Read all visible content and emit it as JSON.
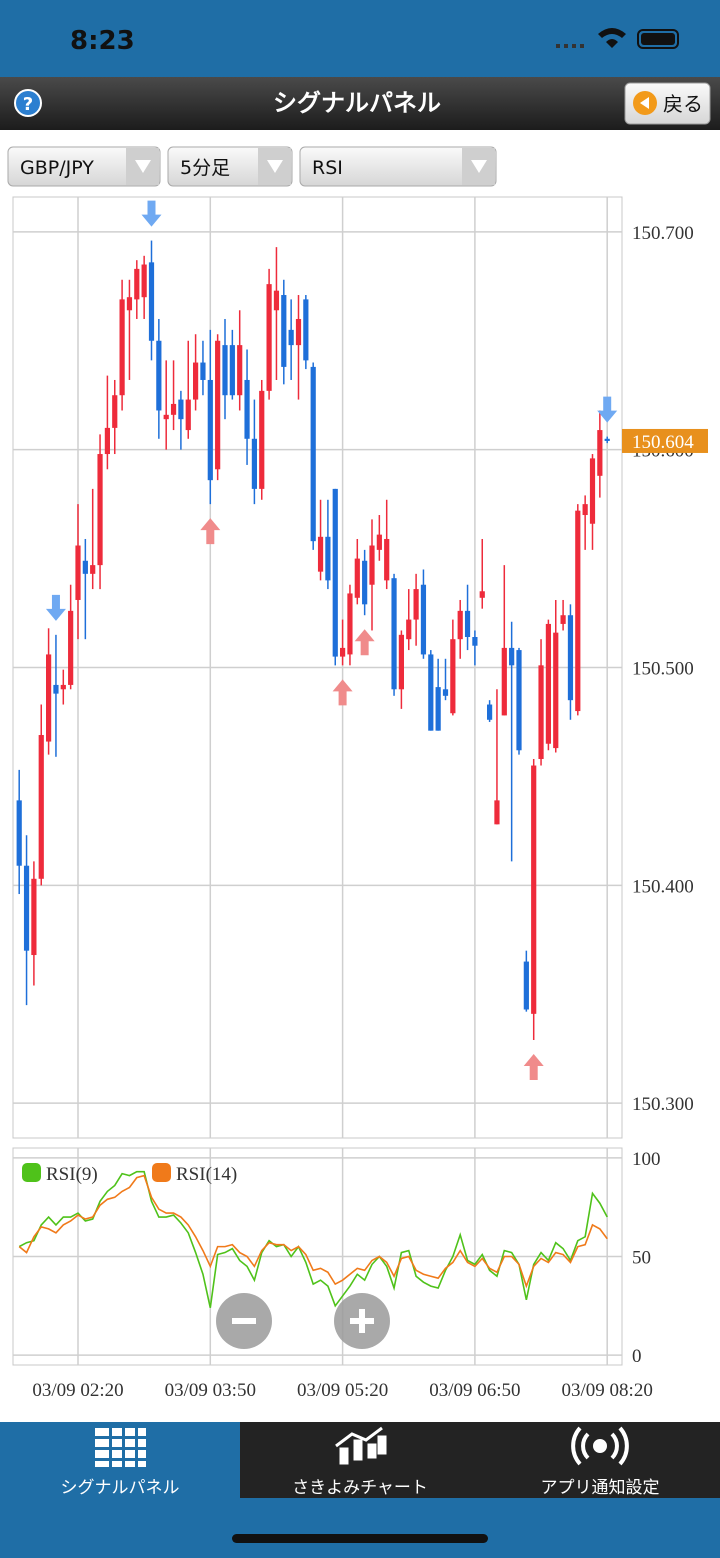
{
  "status_bar": {
    "time": "8:23"
  },
  "header": {
    "title": "シグナルパネル",
    "back_button": "戻る"
  },
  "selectors": [
    "GBP/JPY",
    "5分足",
    "RSI"
  ],
  "chart_data": [
    {
      "type": "candlestick",
      "up_color": "#ee2b3b",
      "down_color": "#1e6fd9",
      "grid": true,
      "ylim": [
        150.284,
        150.716
      ],
      "yticks": [
        {
          "value": 150.3,
          "label": "150.300"
        },
        {
          "value": 150.4,
          "label": "150.400"
        },
        {
          "value": 150.5,
          "label": "150.500"
        },
        {
          "value": 150.6,
          "label": "150.600"
        },
        {
          "value": 150.7,
          "label": "150.700"
        }
      ],
      "open": [
        150.439,
        150.409,
        150.368,
        150.403,
        150.466,
        150.492,
        150.49,
        150.492,
        150.531,
        150.549,
        150.543,
        150.547,
        150.598,
        150.61,
        150.625,
        150.664,
        150.669,
        150.67,
        150.686,
        150.65,
        150.614,
        150.616,
        150.623,
        150.609,
        150.623,
        150.64,
        150.632,
        150.591,
        150.648,
        150.648,
        150.625,
        150.632,
        150.605,
        150.582,
        150.627,
        150.664,
        150.671,
        150.655,
        150.648,
        150.669,
        150.638,
        150.544,
        150.56,
        150.582,
        150.505,
        150.506,
        150.532,
        150.549,
        150.538,
        150.554,
        150.54,
        150.541,
        150.49,
        150.513,
        150.522,
        150.538,
        150.506,
        150.491,
        150.49,
        150.479,
        150.513,
        150.526,
        150.514,
        150.532,
        150.483,
        150.428,
        150.478,
        150.509,
        150.508,
        150.365,
        150.341,
        150.458,
        150.465,
        150.463,
        150.52,
        150.524,
        150.48,
        150.57,
        150.566,
        150.588,
        150.605
      ],
      "high": [
        150.453,
        150.423,
        150.411,
        150.483,
        150.518,
        150.515,
        150.499,
        150.538,
        150.575,
        150.559,
        150.582,
        150.607,
        150.634,
        150.632,
        150.678,
        150.678,
        150.687,
        150.689,
        150.696,
        150.66,
        150.641,
        150.641,
        150.627,
        150.65,
        150.653,
        150.65,
        150.655,
        150.653,
        150.66,
        150.655,
        150.664,
        150.646,
        150.623,
        150.632,
        150.683,
        150.693,
        150.678,
        150.669,
        150.671,
        150.671,
        150.64,
        150.577,
        150.577,
        150.582,
        150.522,
        150.538,
        150.559,
        150.554,
        150.568,
        150.57,
        150.577,
        150.543,
        150.517,
        150.536,
        150.543,
        150.545,
        150.508,
        150.504,
        150.504,
        150.522,
        150.531,
        150.538,
        150.517,
        150.559,
        150.485,
        150.49,
        150.547,
        150.521,
        150.509,
        150.37,
        150.458,
        150.513,
        150.522,
        150.531,
        150.531,
        150.529,
        150.575,
        150.579,
        150.598,
        150.618,
        150.606
      ],
      "low": [
        150.396,
        150.345,
        150.354,
        150.4,
        150.46,
        150.459,
        150.483,
        150.49,
        150.513,
        150.513,
        150.536,
        150.536,
        150.591,
        150.598,
        150.618,
        150.632,
        150.66,
        150.66,
        150.641,
        150.605,
        150.6,
        150.609,
        150.6,
        150.605,
        150.618,
        150.625,
        150.575,
        150.586,
        150.614,
        150.623,
        150.618,
        150.593,
        150.575,
        150.577,
        150.623,
        150.632,
        150.63,
        150.632,
        150.623,
        150.637,
        150.554,
        150.54,
        150.536,
        150.501,
        150.501,
        150.501,
        150.529,
        150.524,
        150.517,
        150.549,
        150.536,
        150.487,
        150.481,
        150.508,
        150.51,
        150.504,
        150.471,
        150.471,
        150.485,
        150.478,
        150.504,
        150.508,
        150.501,
        150.527,
        150.475,
        150.428,
        150.478,
        150.411,
        150.46,
        150.342,
        150.329,
        150.455,
        150.462,
        150.461,
        150.517,
        150.476,
        150.478,
        150.554,
        150.554,
        150.578,
        150.603
      ],
      "close": [
        150.409,
        150.37,
        150.403,
        150.469,
        150.506,
        150.488,
        150.492,
        150.526,
        150.556,
        150.543,
        150.547,
        150.598,
        150.61,
        150.625,
        150.669,
        150.67,
        150.683,
        150.685,
        150.65,
        150.618,
        150.616,
        150.621,
        150.614,
        150.623,
        150.64,
        150.632,
        150.586,
        150.65,
        150.625,
        150.625,
        150.648,
        150.605,
        150.582,
        150.627,
        150.676,
        150.673,
        150.638,
        150.648,
        150.66,
        150.641,
        150.558,
        150.56,
        150.54,
        150.505,
        150.509,
        150.534,
        150.55,
        150.529,
        150.556,
        150.561,
        150.559,
        150.49,
        150.515,
        150.522,
        150.536,
        150.506,
        150.471,
        150.471,
        150.487,
        150.513,
        150.526,
        150.514,
        150.51,
        150.535,
        150.476,
        150.439,
        150.509,
        150.501,
        150.462,
        150.343,
        150.455,
        150.501,
        150.52,
        150.516,
        150.524,
        150.485,
        150.572,
        150.575,
        150.596,
        150.609,
        150.604
      ],
      "sell_signals": [
        5,
        18,
        80
      ],
      "buy_signals": [
        26,
        44,
        47,
        70
      ]
    },
    {
      "type": "line",
      "ylim": [
        -5,
        105
      ],
      "yticks": [
        0,
        50,
        100
      ],
      "grid": true,
      "categories": [
        null,
        null,
        null,
        null,
        null,
        null,
        null,
        null,
        "03/09 02:20",
        null,
        null,
        null,
        null,
        null,
        null,
        null,
        null,
        null,
        null,
        null,
        null,
        null,
        null,
        null,
        null,
        null,
        "03/09 03:50",
        null,
        null,
        null,
        null,
        null,
        null,
        null,
        null,
        null,
        null,
        null,
        null,
        null,
        null,
        null,
        null,
        null,
        "03/09 05:20",
        null,
        null,
        null,
        null,
        null,
        null,
        null,
        null,
        null,
        null,
        null,
        null,
        null,
        null,
        null,
        null,
        null,
        "03/09 06:50",
        null,
        null,
        null,
        null,
        null,
        null,
        null,
        null,
        null,
        null,
        null,
        null,
        null,
        null,
        null,
        null,
        null,
        "03/09 08:20"
      ],
      "series": [
        {
          "name": "RSI(9)",
          "color": "#4fc21a",
          "values": [
            55,
            57,
            58,
            66,
            70,
            66,
            70,
            70,
            72,
            68,
            69,
            78,
            83,
            86,
            92,
            91,
            93,
            93,
            78,
            70,
            70,
            71,
            67,
            62,
            52,
            41,
            24,
            51,
            52,
            54,
            48,
            45,
            38,
            52,
            58,
            55,
            56,
            50,
            55,
            47,
            36,
            38,
            35,
            25,
            30,
            35,
            41,
            38,
            46,
            50,
            45,
            34,
            52,
            53,
            40,
            37,
            35,
            34,
            43,
            50,
            61,
            48,
            46,
            51,
            43,
            40,
            53,
            52,
            46,
            28,
            46,
            52,
            48,
            57,
            54,
            48,
            58,
            60,
            82,
            77,
            70
          ]
        },
        {
          "name": "RSI(14)",
          "color": "#f07a1a",
          "values": [
            55,
            52,
            60,
            65,
            64,
            62,
            66,
            68,
            71,
            69,
            70,
            76,
            79,
            80,
            83,
            85,
            90,
            91,
            80,
            74,
            72,
            72,
            70,
            66,
            60,
            53,
            45,
            55,
            55,
            56,
            52,
            50,
            45,
            53,
            57,
            56,
            56,
            53,
            55,
            51,
            43,
            44,
            42,
            36,
            38,
            41,
            44,
            43,
            48,
            50,
            47,
            40,
            49,
            50,
            43,
            41,
            40,
            39,
            44,
            47,
            53,
            47,
            45,
            49,
            44,
            42,
            50,
            50,
            46,
            35,
            45,
            49,
            47,
            52,
            51,
            47,
            55,
            56,
            66,
            64,
            59
          ]
        }
      ]
    }
  ],
  "tab_bar": {
    "tabs": [
      "シグナルパネル",
      "さきよみチャート",
      "アプリ通知設定"
    ]
  }
}
